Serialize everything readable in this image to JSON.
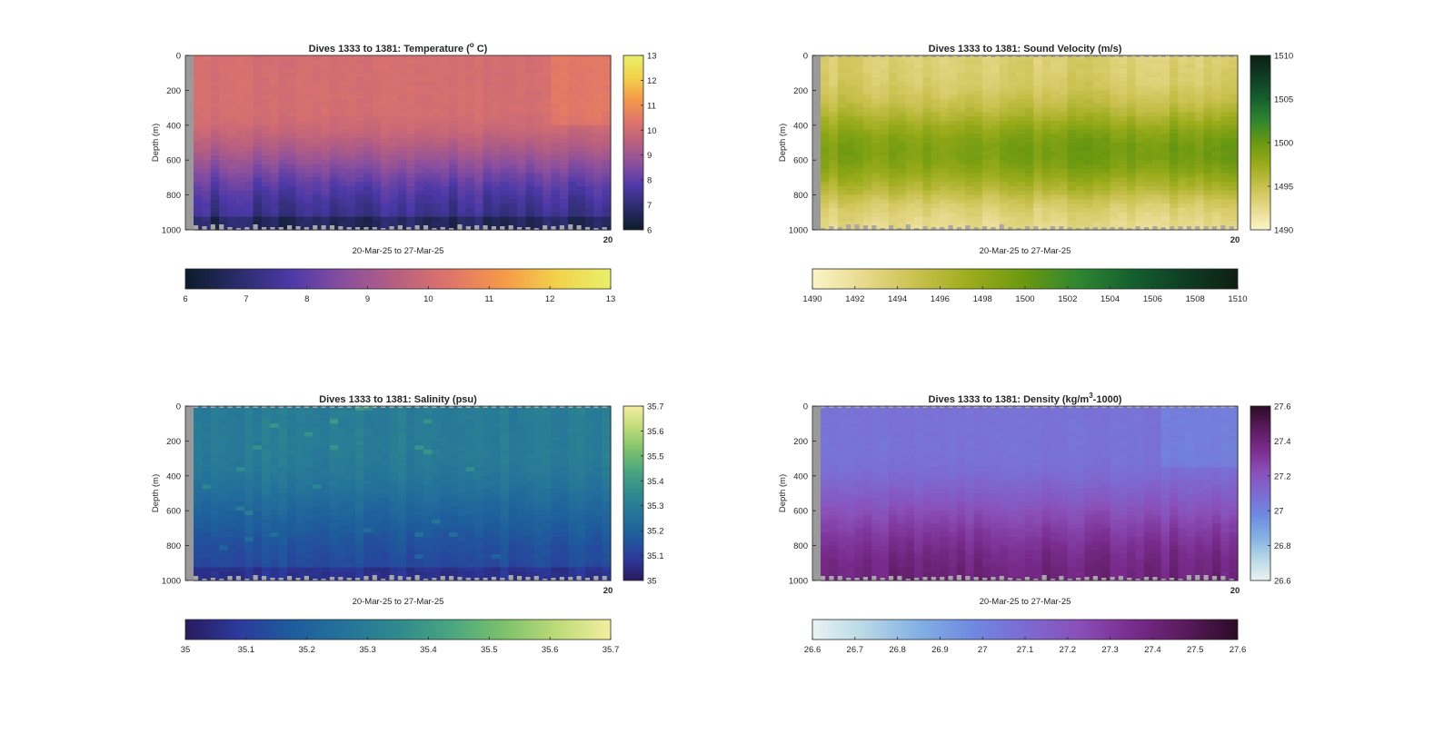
{
  "chart_data": [
    {
      "type": "heatmap",
      "title": "Dives 1333 to 1381: Temperature (",
      "title_sup": "o",
      "title_tail": " C)",
      "variable": "Temperature",
      "xlabel": "20-Mar-25 to 27-Mar-25",
      "ylabel": "Depth (m)",
      "ylim": [
        0,
        1000
      ],
      "y_ticks": [
        "0",
        "200",
        "400",
        "600",
        "800",
        "1000"
      ],
      "x_tick_label": "20",
      "clim": [
        6,
        13
      ],
      "colormap": [
        "#0c1b2b",
        "#2a2c6a",
        "#4d39a8",
        "#8a4f9e",
        "#b9607f",
        "#e0756a",
        "#f59a48",
        "#f3d24b",
        "#e8f06a"
      ],
      "colorbar_ticks": [
        "6",
        "7",
        "8",
        "9",
        "10",
        "11",
        "12",
        "13"
      ],
      "horizontal_colorbar_ticks": [
        "6",
        "7",
        "8",
        "9",
        "10",
        "11",
        "12",
        "13"
      ],
      "surface_value": 10.1,
      "deep_value": 7.3,
      "transition_depth": 520,
      "dives": 49
    },
    {
      "type": "heatmap",
      "title": "Dives 1333 to 1381: Sound Velocity (m/s)",
      "title_sup": "",
      "title_tail": "",
      "variable": "Sound Velocity",
      "xlabel": "20-Mar-25 to 27-Mar-25",
      "ylabel": "Depth (m)",
      "ylim": [
        0,
        1000
      ],
      "y_ticks": [
        "0",
        "200",
        "400",
        "600",
        "800",
        "1000"
      ],
      "x_tick_label": "20",
      "clim": [
        1490,
        1510
      ],
      "colormap": [
        "#fbf4c8",
        "#e6d98a",
        "#c8c04c",
        "#9aab1a",
        "#6a9810",
        "#2f8630",
        "#15602e",
        "#0f3d24",
        "#0d1f12"
      ],
      "colorbar_ticks": [
        "1490",
        "1495",
        "1500",
        "1505",
        "1510"
      ],
      "horizontal_colorbar_ticks": [
        "1490",
        "1492",
        "1494",
        "1496",
        "1498",
        "1500",
        "1502",
        "1504",
        "1506",
        "1508",
        "1510"
      ],
      "surface_value": 1493.5,
      "mid_value": 1498.8,
      "deep_value": 1492.5,
      "dives": 49
    },
    {
      "type": "heatmap",
      "title": "Dives 1333 to 1381: Salinity (psu)",
      "title_sup": "",
      "title_tail": "",
      "variable": "Salinity",
      "xlabel": "20-Mar-25 to 27-Mar-25",
      "ylabel": "Depth (m)",
      "ylim": [
        0,
        1000
      ],
      "y_ticks": [
        "0",
        "200",
        "400",
        "600",
        "800",
        "1000"
      ],
      "x_tick_label": "20",
      "clim": [
        35,
        35.7
      ],
      "colormap": [
        "#2a1a5e",
        "#2c3a9c",
        "#1e5c9c",
        "#24739a",
        "#2f8a8e",
        "#4aa581",
        "#7cc26b",
        "#bedb78",
        "#f3ee9e"
      ],
      "colorbar_ticks": [
        "35",
        "35.1",
        "35.2",
        "35.3",
        "35.4",
        "35.5",
        "35.6",
        "35.7"
      ],
      "horizontal_colorbar_ticks": [
        "35",
        "35.1",
        "35.2",
        "35.3",
        "35.4",
        "35.5",
        "35.6",
        "35.7"
      ],
      "surface_value": 35.3,
      "deep_value": 35.13,
      "transition_depth": 560,
      "dives": 49
    },
    {
      "type": "heatmap",
      "title": "Dives 1333 to 1381: Density (kg/m",
      "title_sup": "3",
      "title_tail": "-1000)",
      "variable": "Density",
      "xlabel": "20-Mar-25 to 27-Mar-25",
      "ylabel": "Depth (m)",
      "ylim": [
        0,
        1000
      ],
      "y_ticks": [
        "0",
        "200",
        "400",
        "600",
        "800",
        "1000"
      ],
      "x_tick_label": "20",
      "clim": [
        26.6,
        27.6
      ],
      "colormap": [
        "#e9f3f3",
        "#b7d7e6",
        "#82b0e3",
        "#6f89e0",
        "#7c6bd2",
        "#8a4fb8",
        "#7a2c8e",
        "#5a1a5c",
        "#2c0b26"
      ],
      "colorbar_ticks": [
        "26.6",
        "26.8",
        "27",
        "27.2",
        "27.4",
        "27.6"
      ],
      "horizontal_colorbar_ticks": [
        "26.6",
        "26.7",
        "26.8",
        "26.9",
        "27",
        "27.1",
        "27.2",
        "27.3",
        "27.4",
        "27.5",
        "27.6"
      ],
      "surface_value": 27.07,
      "deep_value": 27.4,
      "transition_depth": 520,
      "dives": 49
    }
  ]
}
